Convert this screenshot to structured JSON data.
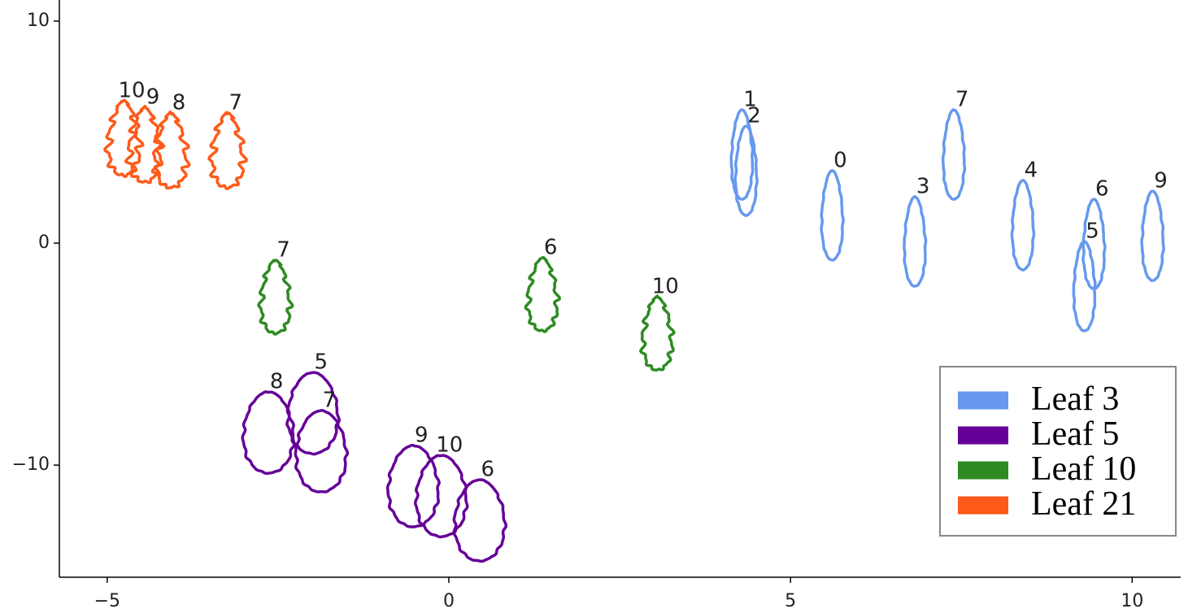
{
  "chart_data": {
    "type": "scatter",
    "xlim": [
      -5.7,
      10.71
    ],
    "ylim": [
      -15.05,
      10.95
    ],
    "xticks": [
      {
        "value": -5,
        "label": "−5"
      },
      0,
      5,
      10
    ],
    "yticks": [
      {
        "value": -10,
        "label": "−10"
      },
      0,
      10
    ],
    "legend": "lower right",
    "series": [
      {
        "name": "Leaf 3",
        "color": "#6699ee",
        "x": [
          4.29,
          4.35,
          5.61,
          6.82,
          7.39,
          8.4,
          9.44,
          9.3,
          10.3
        ],
        "values": [
          3.99,
          3.26,
          1.25,
          0.07,
          3.99,
          0.81,
          -0.04,
          -1.94,
          0.33
        ],
        "labels": [
          "1",
          "2",
          "0",
          "3",
          "7",
          "4",
          "6",
          "5",
          "9"
        ]
      },
      {
        "name": "Leaf 5",
        "color": "#660099",
        "x": [
          -2.64,
          -1.99,
          -1.87,
          -0.52,
          -0.11,
          0.45
        ],
        "values": [
          -8.53,
          -7.66,
          -9.38,
          -10.95,
          -11.39,
          -12.49
        ],
        "labels": [
          "8",
          "5",
          "7",
          "9",
          "10",
          "6"
        ]
      },
      {
        "name": "Leaf 10",
        "color": "#2e8b22",
        "x": [
          -2.54,
          1.37,
          3.05
        ],
        "values": [
          -2.42,
          -2.31,
          -4.07
        ],
        "labels": [
          "7",
          "6",
          "10"
        ]
      },
      {
        "name": "Leaf 21",
        "color": "#ff5a1a",
        "x": [
          -4.76,
          -4.45,
          -4.07,
          -3.24
        ],
        "values": [
          4.73,
          4.43,
          4.18,
          4.18
        ],
        "labels": [
          "10",
          "9",
          "8",
          "7"
        ]
      }
    ]
  }
}
